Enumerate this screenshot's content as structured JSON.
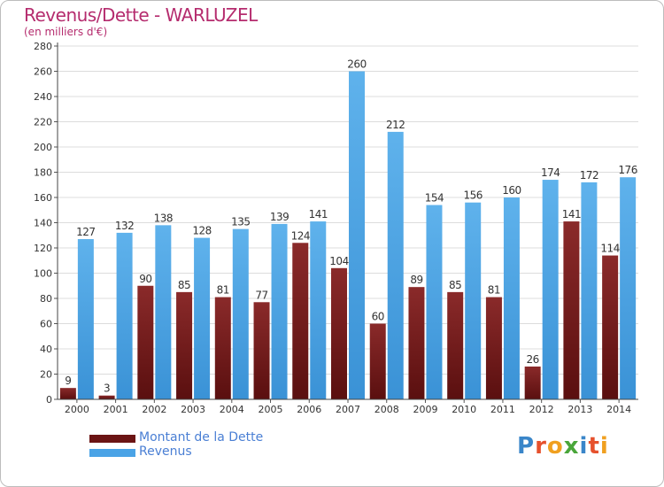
{
  "title": "Revenus/Dette - WARLUZEL",
  "subtitle": "(en milliers d'€)",
  "colors": {
    "debt_top": "#8a2a2a",
    "debt_bottom": "#5a0f0f",
    "revenue_top": "#5fb2ec",
    "revenue_bottom": "#3a92d6",
    "title": "#b52c6e",
    "legend_text": "#4a7fd4",
    "grid": "#dcdcdc"
  },
  "legend": [
    {
      "label": "Montant de la Dette",
      "color": "#6b1414"
    },
    {
      "label": "Revenus",
      "color": "#4aa3e6"
    }
  ],
  "logo": {
    "letters": [
      "P",
      "r",
      "o",
      "x",
      "i",
      "t",
      "i"
    ],
    "colors": [
      "#3a86c9",
      "#e6512d",
      "#f0a020",
      "#4aa63a",
      "#3a86c9",
      "#e6512d",
      "#f0a020"
    ]
  },
  "chart_data": {
    "type": "bar",
    "categories": [
      "2000",
      "2001",
      "2002",
      "2003",
      "2004",
      "2005",
      "2006",
      "2007",
      "2008",
      "2009",
      "2010",
      "2011",
      "2012",
      "2013",
      "2014"
    ],
    "series": [
      {
        "name": "Montant de la Dette",
        "values": [
          9,
          3,
          90,
          85,
          81,
          77,
          124,
          104,
          60,
          89,
          85,
          81,
          26,
          141,
          114
        ]
      },
      {
        "name": "Revenus",
        "values": [
          127,
          132,
          138,
          128,
          135,
          139,
          141,
          260,
          212,
          154,
          156,
          160,
          174,
          172,
          176
        ]
      }
    ],
    "title": "Revenus/Dette - WARLUZEL",
    "subtitle": "(en milliers d'€)",
    "ylim": [
      0,
      280
    ],
    "yticks": [
      0,
      20,
      40,
      60,
      80,
      100,
      120,
      140,
      160,
      180,
      200,
      220,
      240,
      260,
      280
    ],
    "grid": true,
    "legend_position": "bottom-left"
  }
}
